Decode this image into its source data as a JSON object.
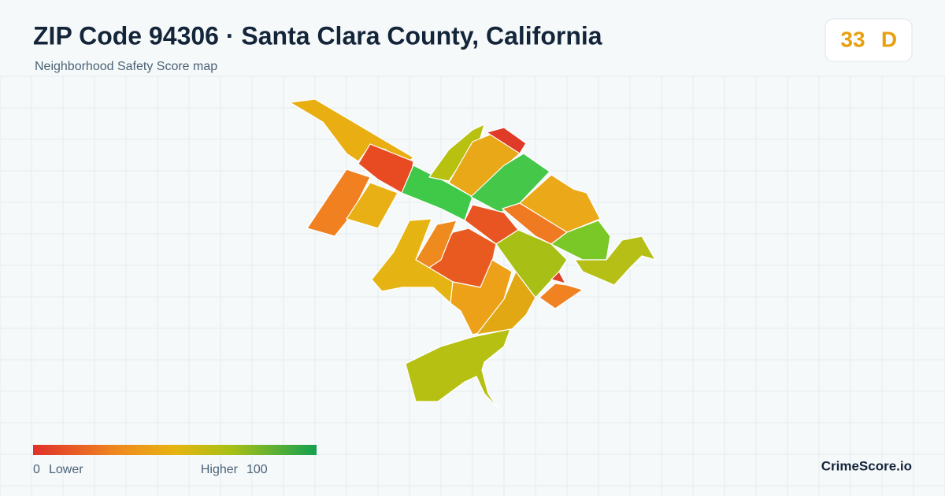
{
  "header": {
    "title": "ZIP Code 94306 · Santa Clara County, California",
    "subtitle": "Neighborhood Safety Score map"
  },
  "score": {
    "value": 33,
    "grade": "D"
  },
  "legend": {
    "min": 0,
    "min_label": "Lower",
    "max_label": "Higher",
    "max": 100
  },
  "brand": "CrimeScore.io"
}
